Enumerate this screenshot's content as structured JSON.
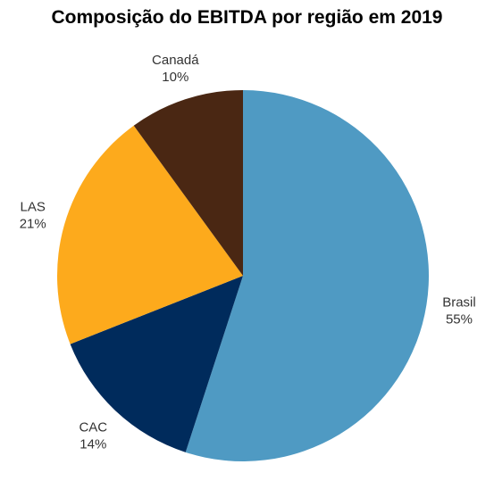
{
  "chart_data": {
    "type": "pie",
    "title": "Composição do EBITDA por região em 2019",
    "slices": [
      {
        "label": "Brasil",
        "value": 55,
        "value_label": "55%",
        "color": "#4f9ac3"
      },
      {
        "label": "CAC",
        "value": 14,
        "value_label": "14%",
        "color": "#002b5c"
      },
      {
        "label": "LAS",
        "value": 21,
        "value_label": "21%",
        "color": "#fdaa1c"
      },
      {
        "label": "Canadá",
        "value": 10,
        "value_label": "10%",
        "color": "#4a2713"
      }
    ],
    "start": "top",
    "direction": "clockwise",
    "legend": "none"
  }
}
